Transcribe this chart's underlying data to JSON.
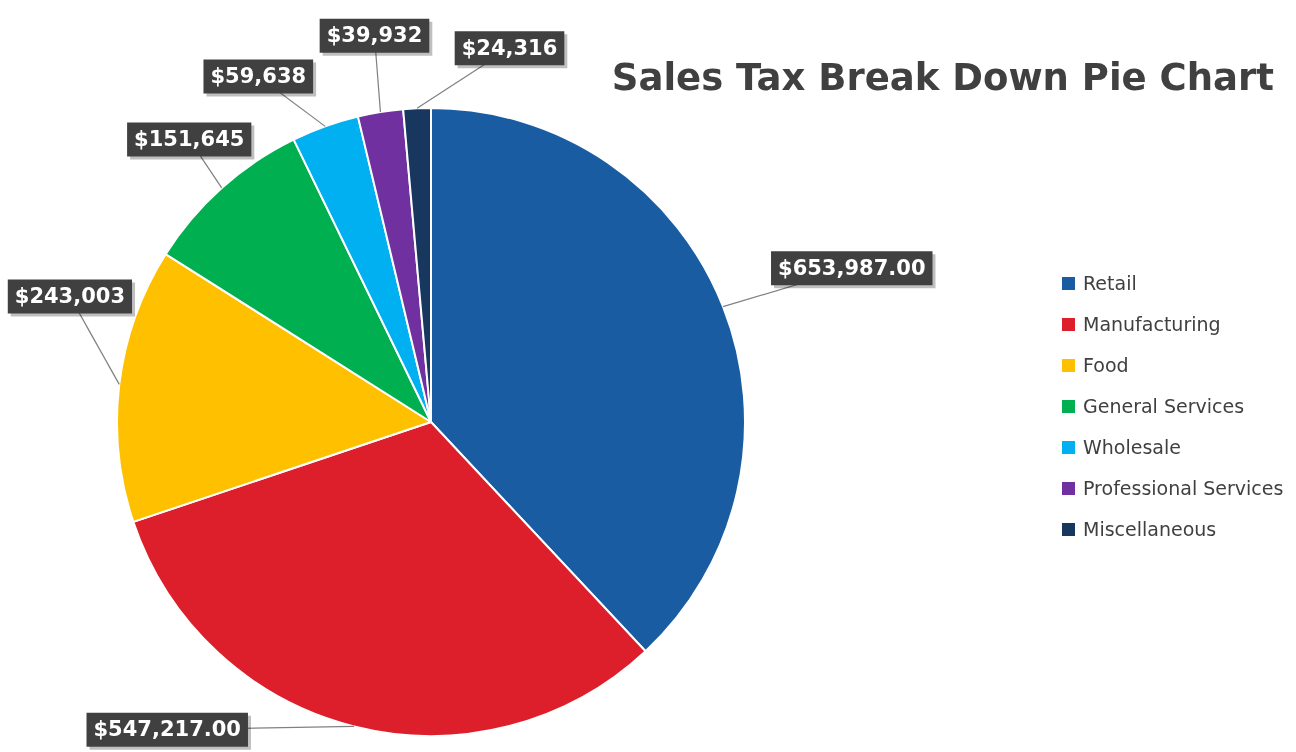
{
  "chart_data": {
    "type": "pie",
    "title": "Sales Tax Break Down Pie Chart",
    "categories": [
      "Retail",
      "Manufacturing",
      "Food",
      "General Services",
      "Wholesale",
      "Professional Services",
      "Miscellaneous"
    ],
    "values": [
      653987,
      547217,
      243003,
      151645,
      59638,
      39932,
      24316
    ],
    "value_labels": [
      "$653,987.00",
      "$547,217.00",
      "$243,003",
      "$151,645",
      "$59,638",
      "$39,932",
      "$24,316"
    ],
    "colors": [
      "#1a5ca2",
      "#dc1f2b",
      "#ffc000",
      "#00b050",
      "#00b0f0",
      "#7030a0",
      "#17375e"
    ],
    "legend": "right"
  }
}
